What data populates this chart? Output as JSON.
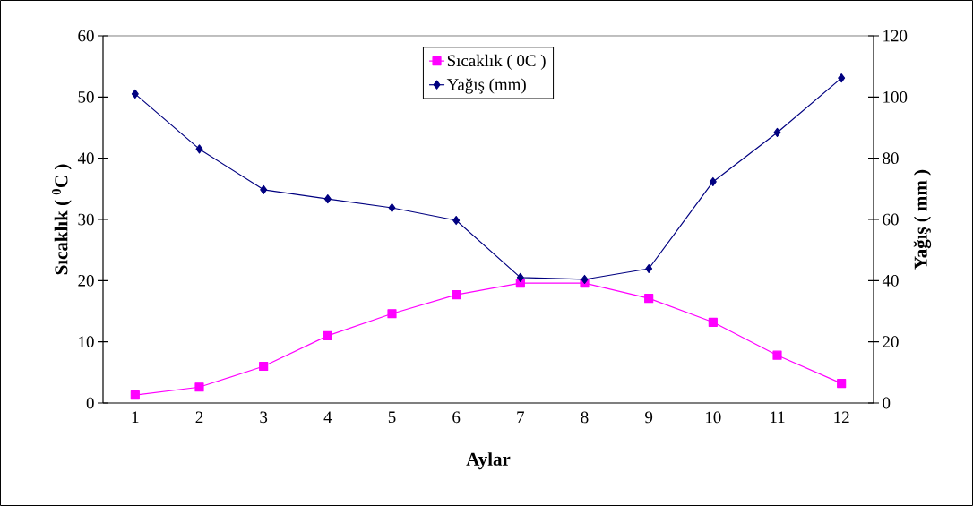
{
  "chart_data": {
    "type": "line",
    "categories": [
      "1",
      "2",
      "3",
      "4",
      "5",
      "6",
      "7",
      "8",
      "9",
      "10",
      "11",
      "12"
    ],
    "xlabel": "Aylar",
    "ylabel": "Sıcaklık ( $^{0}$C )",
    "y2label": "Yağış ( mm )",
    "series": [
      {
        "name": "Sıcaklık ( 0C )",
        "color": "#ff00ff",
        "marker": "square",
        "values": [
          1.3,
          2.6,
          6.0,
          11.0,
          14.6,
          17.7,
          19.6,
          19.6,
          17.1,
          13.2,
          7.8,
          3.2
        ]
      },
      {
        "name": "Yağış (mm)",
        "color": "#000080",
        "marker": "diamond",
        "axis": "y2",
        "values": [
          101,
          83,
          69.7,
          66.7,
          63.8,
          59.7,
          41,
          40.4,
          43.9,
          72.3,
          88.4,
          106.2
        ]
      }
    ],
    "ylim": [
      0,
      60
    ],
    "yticks": [
      0,
      10,
      20,
      30,
      40,
      50,
      60
    ],
    "y2lim": [
      0,
      120
    ],
    "y2ticks": [
      0,
      20,
      40,
      60,
      80,
      100,
      120
    ],
    "grid": false,
    "legend": "top"
  }
}
